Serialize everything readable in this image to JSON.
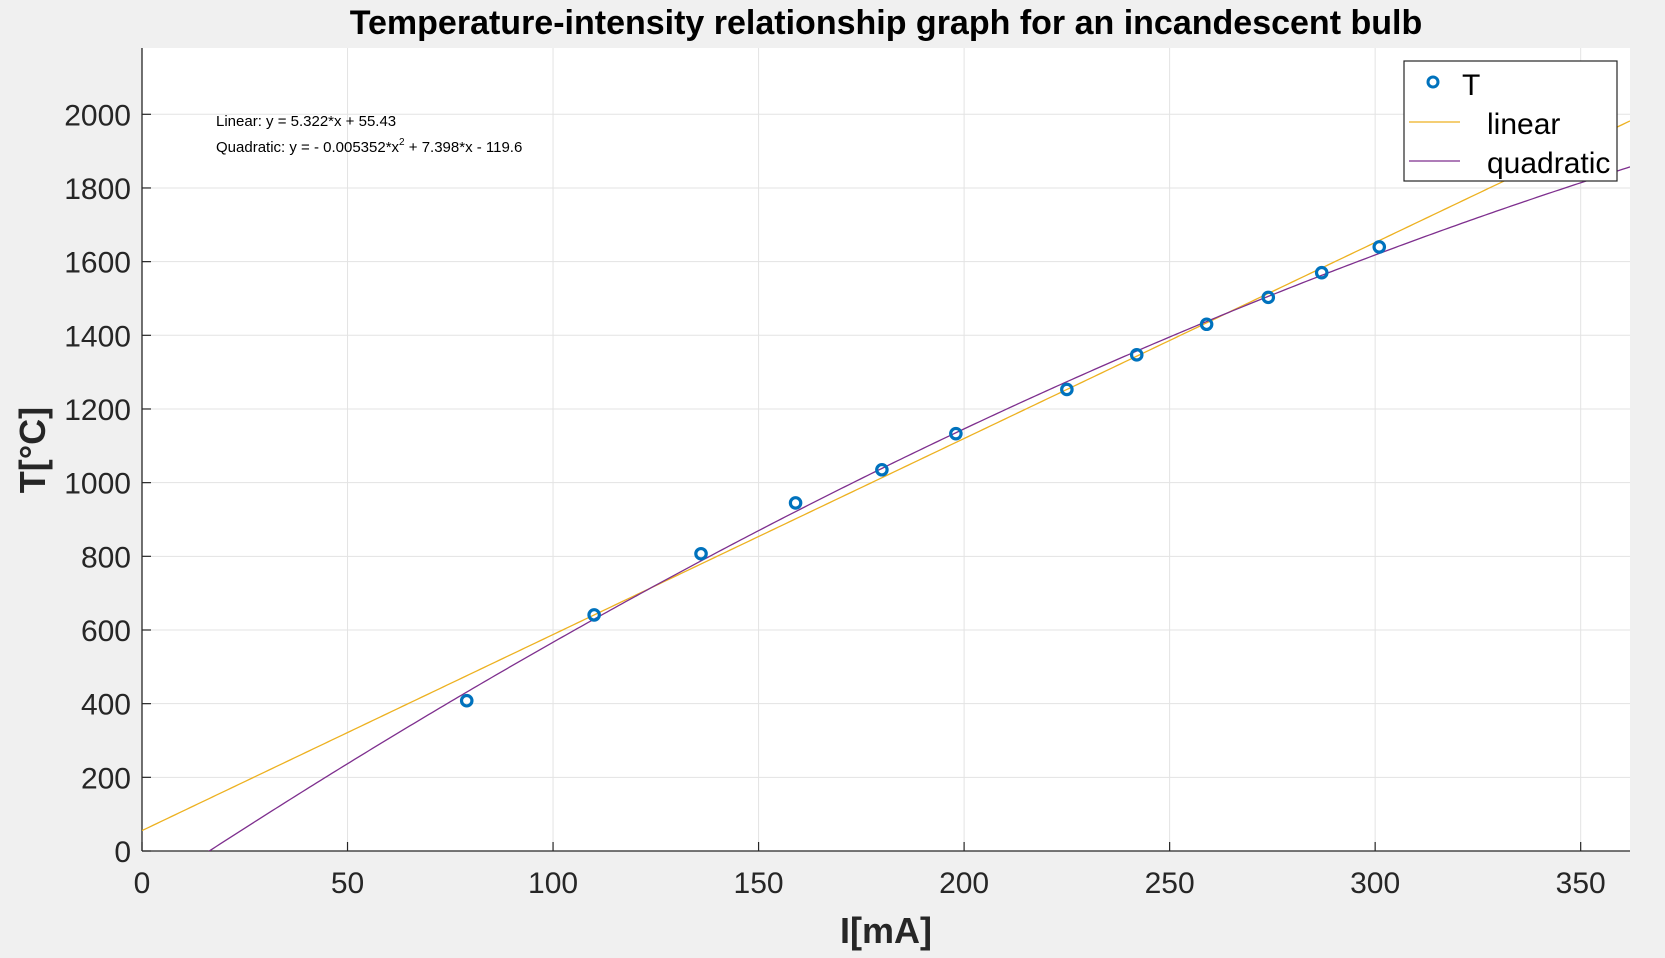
{
  "chart_data": {
    "type": "scatter",
    "title": "Temperature-intensity relationship graph for an incandescent bulb",
    "xlabel": "I[mA]",
    "ylabel": "T[°C]",
    "xlim": [
      0,
      362
    ],
    "ylim": [
      0,
      2180
    ],
    "x_ticks": [
      0,
      50,
      100,
      150,
      200,
      250,
      300,
      350
    ],
    "y_ticks": [
      0,
      200,
      400,
      600,
      800,
      1000,
      1200,
      1400,
      1600,
      1800,
      2000
    ],
    "grid": true,
    "legend_position": "top-right",
    "series": [
      {
        "name": "T",
        "kind": "markers",
        "marker": "circle",
        "color": "#0072BD",
        "x": [
          79,
          110,
          136,
          159,
          180,
          198,
          225,
          242,
          259,
          274,
          287,
          301
        ],
        "y": [
          408,
          641,
          807,
          945,
          1035,
          1133,
          1253,
          1347,
          1430,
          1503,
          1570,
          1640
        ]
      },
      {
        "name": "linear",
        "kind": "line",
        "color": "#EDB120",
        "equation": {
          "form": "linear",
          "a": 5.322,
          "b": 55.43
        }
      },
      {
        "name": "quadratic",
        "kind": "line",
        "color": "#7E2F8E",
        "equation": {
          "form": "quadratic",
          "a": -0.005352,
          "b": 7.398,
          "c": -119.6
        }
      }
    ],
    "annotations": {
      "linear": {
        "prefix": "Linear:  y = 5.322*x + 55.43"
      },
      "quadratic": {
        "prefix": "Quadratic:  y = - 0.005352*x",
        "superscript": "2",
        "suffix": " + 7.398*x - 119.6"
      }
    }
  }
}
